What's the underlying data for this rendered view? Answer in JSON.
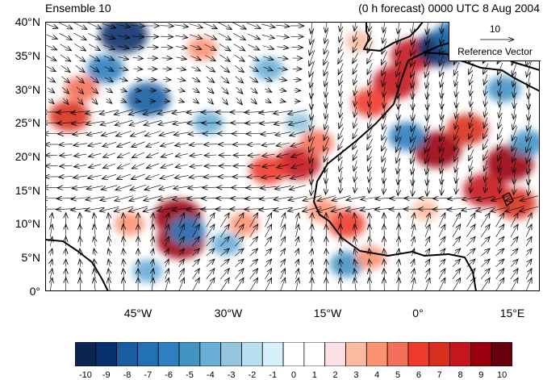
{
  "header": {
    "ensemble_label": "Ensemble 10",
    "forecast_label": "(0 h forecast) 0000 UTC 8 Aug 2004"
  },
  "axes": {
    "y_ticks": [
      "40°N",
      "35°N",
      "30°N",
      "25°N",
      "20°N",
      "15°N",
      "10°N",
      "5°N",
      "0°"
    ],
    "x_ticks": [
      "45°W",
      "30°W",
      "15°W",
      "0°",
      "15°E"
    ],
    "lon_range": [
      -62,
      20
    ],
    "lat_range": [
      0,
      40
    ]
  },
  "reference_vector": {
    "magnitude": "10",
    "label": "Reference Vector"
  },
  "colorbar": {
    "labels": [
      "-10",
      "-9",
      "-8",
      "-7",
      "-6",
      "-5",
      "-4",
      "-3",
      "-2",
      "-1",
      "0",
      "1",
      "2",
      "3",
      "4",
      "5",
      "6",
      "7",
      "8",
      "9",
      "10"
    ],
    "colors": [
      "#0a2551",
      "#08306b",
      "#1a5ca0",
      "#2171b5",
      "#2d7fbf",
      "#4393c3",
      "#6baed6",
      "#92c5de",
      "#b8dff0",
      "#d7f0fb",
      "#ffffff",
      "#ffffff",
      "#fde0e4",
      "#fcbba1",
      "#fc9272",
      "#f4705a",
      "#ef3b2c",
      "#d7301f",
      "#c4161c",
      "#99000d",
      "#67000d"
    ]
  },
  "icons": {
    "wind_arrow": "arrow-icon"
  },
  "chart_data": {
    "type": "heatmap",
    "title": "Ensemble 10",
    "subtitle": "(0 h forecast) 0000 UTC 8 Aug 2004",
    "xlabel": "",
    "ylabel": "",
    "xlim": [
      -62,
      20
    ],
    "ylim": [
      0,
      40
    ],
    "colorbar_range": [
      -10,
      10
    ],
    "anomaly_blobs": [
      {
        "lon": -49,
        "lat": 38,
        "value": -9
      },
      {
        "lon": -45,
        "lat": 28.5,
        "value": -8
      },
      {
        "lon": -58,
        "lat": 26,
        "value": 7
      },
      {
        "lon": -52,
        "lat": 33,
        "value": -6
      },
      {
        "lon": -56,
        "lat": 30,
        "value": 5
      },
      {
        "lon": -20,
        "lat": 19,
        "value": 8
      },
      {
        "lon": -25,
        "lat": 18,
        "value": 6
      },
      {
        "lon": -17,
        "lat": 22,
        "value": 5
      },
      {
        "lon": -4,
        "lat": 31,
        "value": 8
      },
      {
        "lon": -1,
        "lat": 35,
        "value": 8
      },
      {
        "lon": -8,
        "lat": 28,
        "value": 6
      },
      {
        "lon": 3,
        "lat": 21,
        "value": 9
      },
      {
        "lon": 8,
        "lat": 24,
        "value": 7
      },
      {
        "lon": 15,
        "lat": 19,
        "value": 9
      },
      {
        "lon": 11,
        "lat": 15,
        "value": 8
      },
      {
        "lon": 16,
        "lat": 13,
        "value": 7
      },
      {
        "lon": -40,
        "lat": 11,
        "value": 9
      },
      {
        "lon": -39.5,
        "lat": 7.5,
        "value": 9
      },
      {
        "lon": -38.5,
        "lat": 9,
        "value": -6
      },
      {
        "lon": 3.5,
        "lat": 36,
        "value": -9
      },
      {
        "lon": 6,
        "lat": 38,
        "value": -7
      },
      {
        "lon": -2,
        "lat": 23,
        "value": -6
      },
      {
        "lon": 14,
        "lat": 30,
        "value": -5
      },
      {
        "lon": -12,
        "lat": 4,
        "value": -5
      },
      {
        "lon": -45,
        "lat": 3,
        "value": -4
      },
      {
        "lon": -32,
        "lat": 7,
        "value": -4
      },
      {
        "lon": -35,
        "lat": 25,
        "value": -4
      },
      {
        "lon": -25,
        "lat": 33,
        "value": -4
      },
      {
        "lon": -12,
        "lat": 10,
        "value": 6
      },
      {
        "lon": -8,
        "lat": 5,
        "value": 4
      },
      {
        "lon": -16,
        "lat": 12,
        "value": 4
      },
      {
        "lon": 1,
        "lat": 12,
        "value": 3
      },
      {
        "lon": -48,
        "lat": 10,
        "value": 4
      },
      {
        "lon": -10,
        "lat": 37,
        "value": 3
      },
      {
        "lon": 12,
        "lat": 37,
        "value": 6
      },
      {
        "lon": -29,
        "lat": 10,
        "value": 4
      },
      {
        "lon": -36,
        "lat": 36,
        "value": 4
      },
      {
        "lon": -20,
        "lat": 25,
        "value": -3
      },
      {
        "lon": 18,
        "lat": 22,
        "value": -5
      }
    ],
    "wind_field": {
      "regions": [
        {
          "lat_min": 28,
          "lat_max": 40,
          "lon_min": -62,
          "lon_max": -30,
          "direction": "westerly",
          "speed": 8
        },
        {
          "lat_min": 12,
          "lat_max": 28,
          "lon_min": -62,
          "lon_max": -18,
          "direction": "easterly trade winds",
          "speed": 9
        },
        {
          "lat_min": 14,
          "lat_max": 40,
          "lon_min": -18,
          "lon_max": 20,
          "direction": "northerly",
          "speed": 9
        },
        {
          "lat_min": 0,
          "lat_max": 12,
          "lon_min": -62,
          "lon_max": 20,
          "direction": "southerly to southwesterly",
          "speed": 7
        }
      ]
    }
  }
}
